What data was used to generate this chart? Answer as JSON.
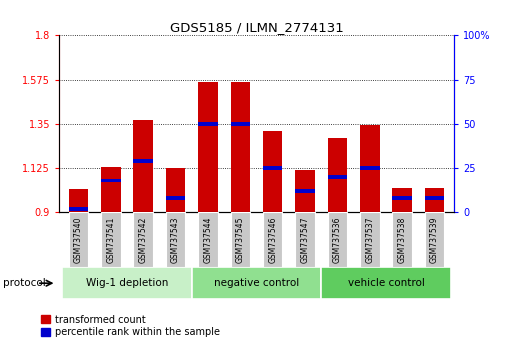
{
  "title": "GDS5185 / ILMN_2774131",
  "samples": [
    "GSM737540",
    "GSM737541",
    "GSM737542",
    "GSM737543",
    "GSM737544",
    "GSM737545",
    "GSM737546",
    "GSM737547",
    "GSM737536",
    "GSM737537",
    "GSM737538",
    "GSM737539"
  ],
  "red_values": [
    1.02,
    1.13,
    1.37,
    1.125,
    1.565,
    1.565,
    1.315,
    1.115,
    1.28,
    1.345,
    1.025,
    1.025
  ],
  "blue_pct": [
    2,
    18,
    29,
    8,
    50,
    50,
    25,
    12,
    20,
    25,
    8,
    8
  ],
  "ylim_left": [
    0.9,
    1.8
  ],
  "ylim_right": [
    0,
    100
  ],
  "yticks_left": [
    0.9,
    1.125,
    1.35,
    1.575,
    1.8
  ],
  "ytick_labels_left": [
    "0.9",
    "1.125",
    "1.35",
    "1.575",
    "1.8"
  ],
  "yticks_right": [
    0,
    25,
    50,
    75,
    100
  ],
  "ytick_labels_right": [
    "0",
    "25",
    "50",
    "75",
    "100%"
  ],
  "groups": [
    {
      "label": "Wig-1 depletion",
      "start": 0,
      "end": 4,
      "color": "#c8f0c8"
    },
    {
      "label": "negative control",
      "start": 4,
      "end": 8,
      "color": "#90e090"
    },
    {
      "label": "vehicle control",
      "start": 8,
      "end": 12,
      "color": "#5fcc5f"
    }
  ],
  "protocol_label": "protocol",
  "bar_color_red": "#cc0000",
  "bar_color_blue": "#0000cc",
  "bar_width": 0.6,
  "label_area_color": "#c8c8c8"
}
